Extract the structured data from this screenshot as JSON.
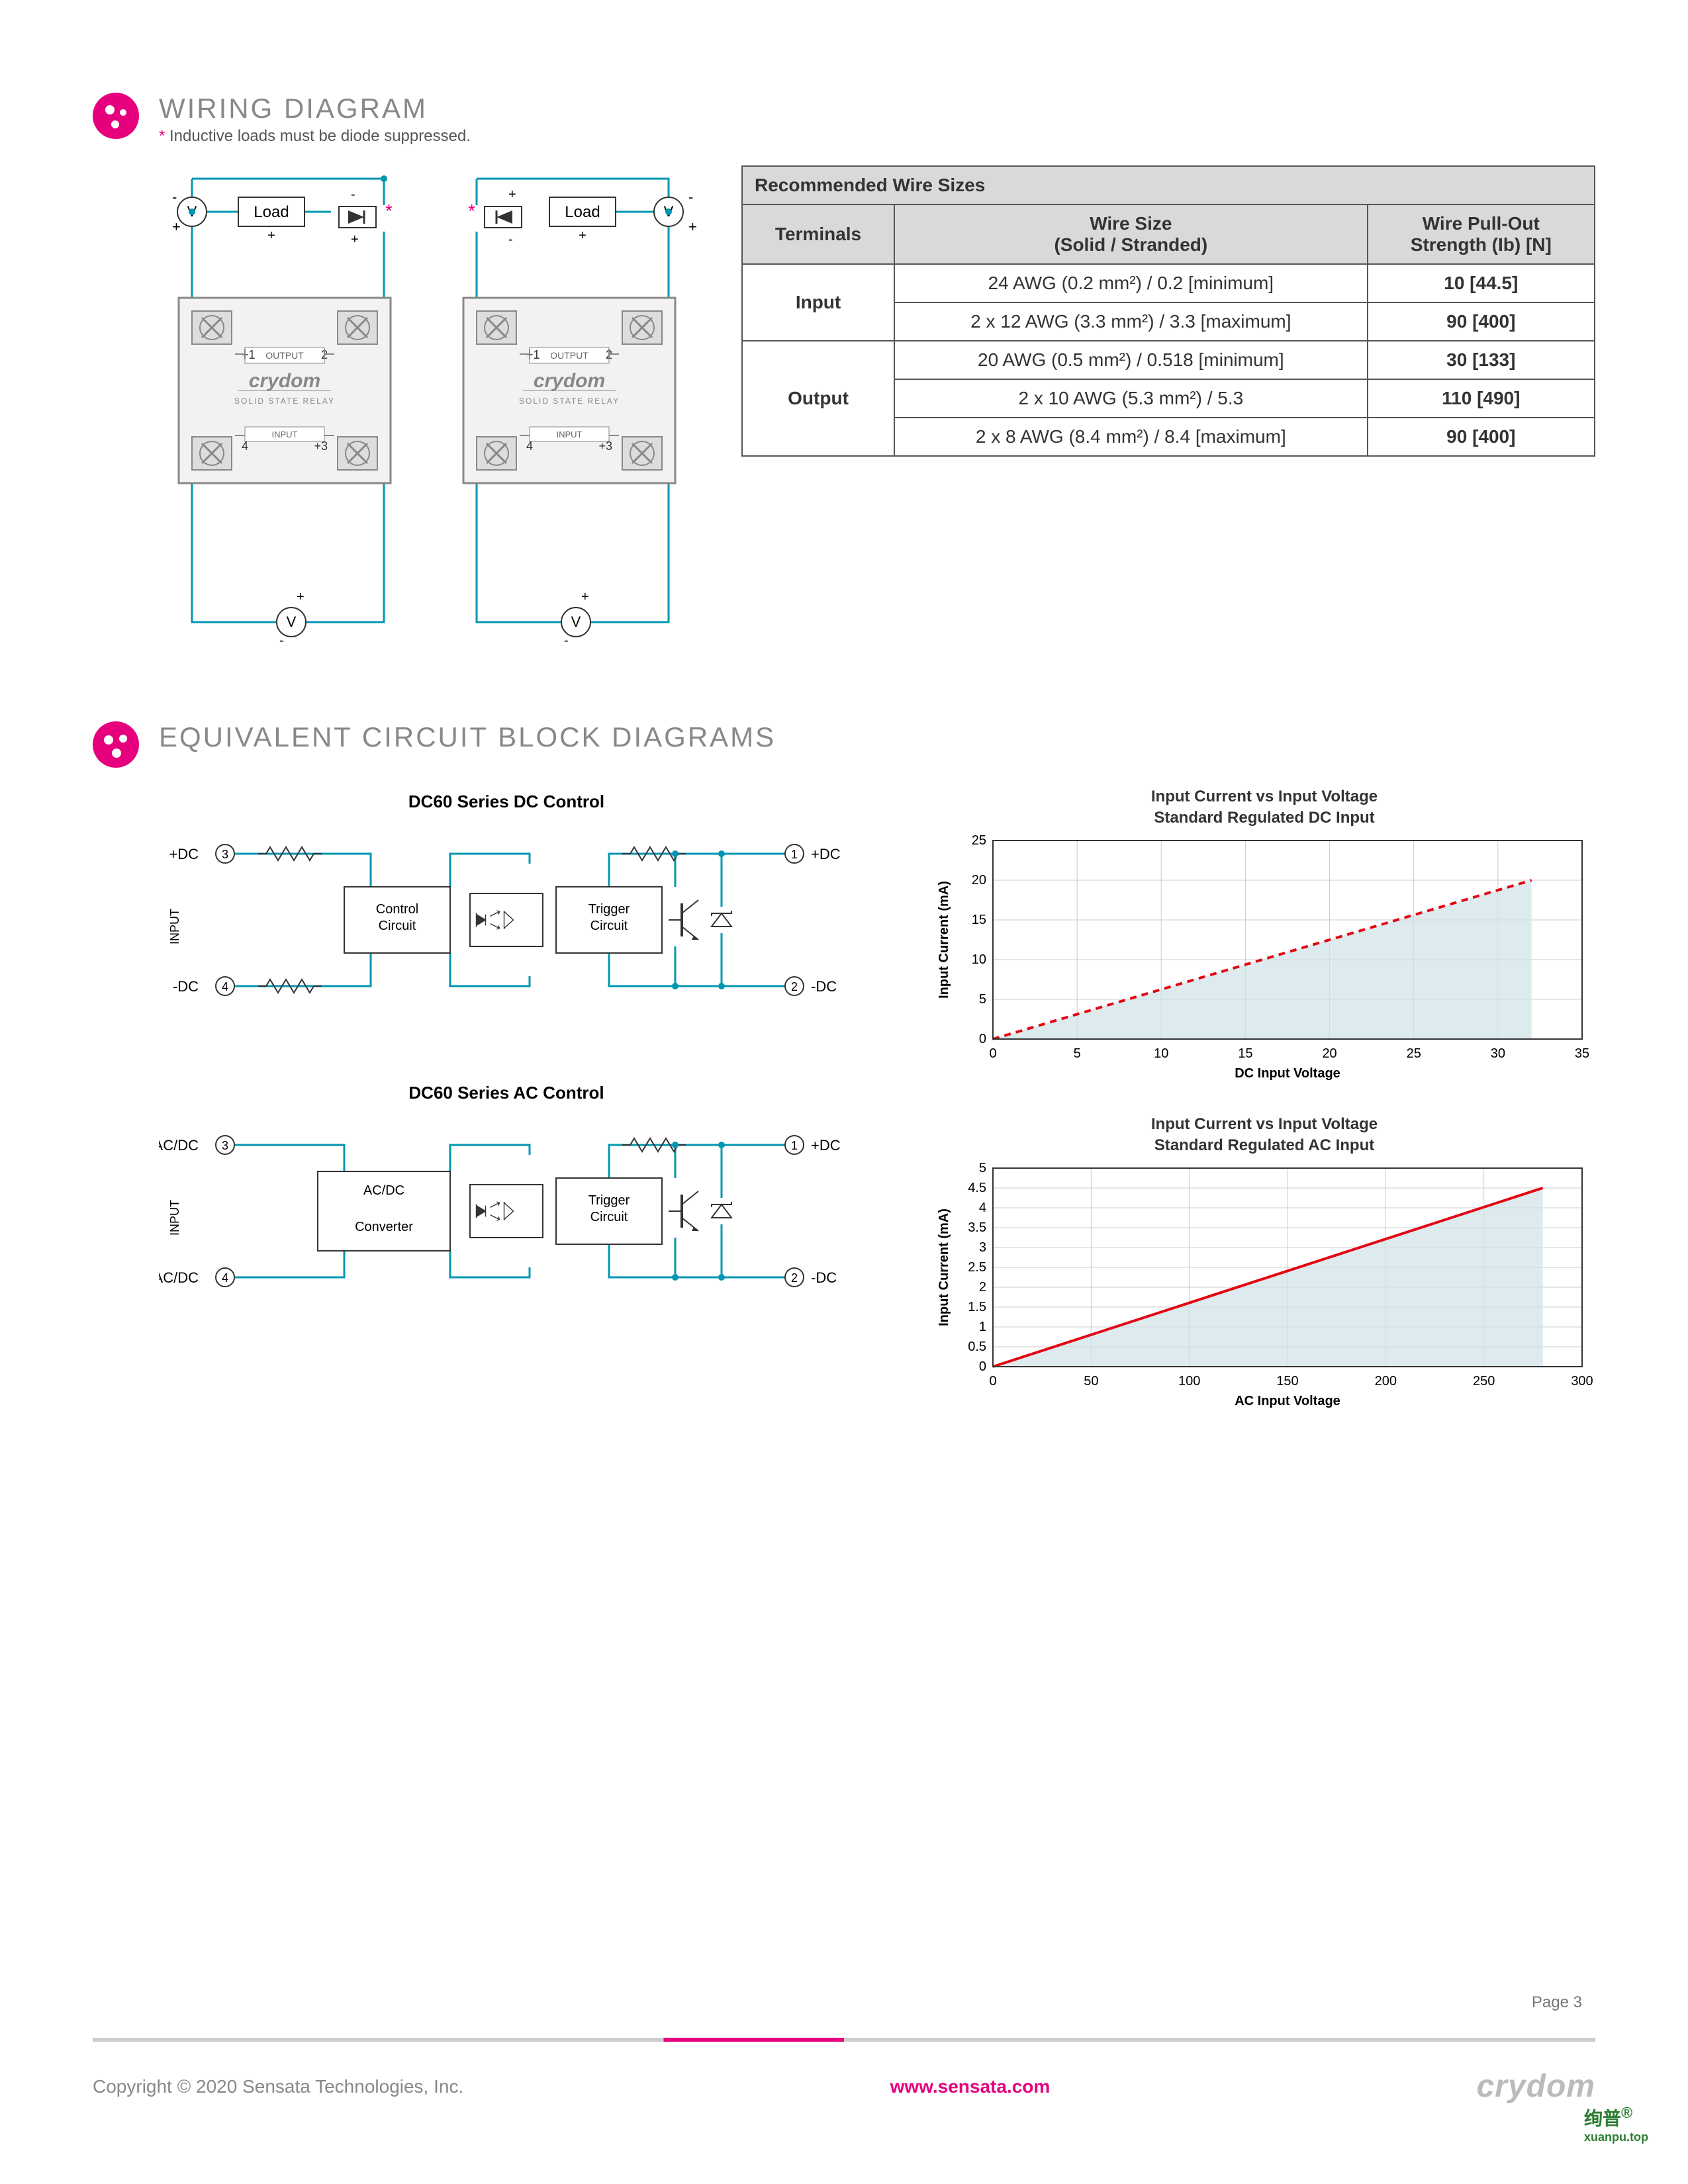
{
  "section1": {
    "title": "WIRING DIAGRAM",
    "note_ast": "*",
    "note": " Inductive loads must be diode suppressed."
  },
  "wiring": {
    "load_label": "Load",
    "v_label": "V",
    "relay_brand": "crydom",
    "relay_sub": "SOLID STATE RELAY",
    "output_label": "OUTPUT",
    "input_label": "INPUT",
    "pin1": "+1",
    "pin2": "2",
    "pin3": "+3",
    "pin4": "4",
    "plus": "+",
    "minus": "-",
    "asterisk": "*"
  },
  "table": {
    "title": "Recommended Wire Sizes",
    "col_term": "Terminals",
    "col_size": "Wire Size",
    "col_size2": "(Solid / Stranded)",
    "col_pull": "Wire Pull-Out",
    "col_pull2": "Strength (Ib) [N]",
    "r_input": "Input",
    "r_output": "Output",
    "rows": [
      {
        "size": "24 AWG (0.2 mm²) / 0.2 [minimum]",
        "str": "10 [44.5]"
      },
      {
        "size": "2 x 12 AWG (3.3 mm²) / 3.3 [maximum]",
        "str": "90 [400]"
      },
      {
        "size": "20 AWG (0.5 mm²) / 0.518 [minimum]",
        "str": "30 [133]"
      },
      {
        "size": "2 x 10 AWG (5.3 mm²) / 5.3",
        "str": "110 [490]"
      },
      {
        "size": "2 x 8  AWG (8.4 mm²) / 8.4 [maximum]",
        "str": "90 [400]"
      }
    ]
  },
  "section2": {
    "title": "EQUIVALENT CIRCUIT BLOCK DIAGRAMS"
  },
  "blocks": {
    "dc_title": "DC60 Series DC Control",
    "ac_title": "DC60 Series AC Control",
    "input_label": "INPUT",
    "ctrl": "Control\nCircuit",
    "conv": "AC/DC\n\nConverter",
    "trig": "Trigger\nCircuit",
    "p_dc_in_p": "+DC",
    "p_dc_in_n": "-DC",
    "p_dc_out_p": "+DC",
    "p_dc_out_n": "-DC",
    "p_ac_in": "AC/DC",
    "n3": "3",
    "n4": "4",
    "n1": "1",
    "n2": "2"
  },
  "chart1": {
    "title": "Input Current vs Input Voltage",
    "subtitle": "Standard Regulated DC Input",
    "xlabel": "DC Input Voltage",
    "ylabel": "Input Current (mA)",
    "xlim": [
      0,
      35
    ],
    "ylim": [
      0,
      25
    ],
    "xticks": [
      0,
      5,
      10,
      15,
      20,
      25,
      30,
      35
    ],
    "yticks": [
      0,
      5,
      10,
      15,
      20,
      25
    ],
    "line": [
      [
        0,
        0
      ],
      [
        32,
        20
      ]
    ],
    "line_color": "#e30613",
    "line_dash": true,
    "fill_color": "#cfe3e8",
    "fill_opacity": 0.7,
    "grid_color": "#ccc",
    "bg": "#ffffff",
    "label_fontsize": 20,
    "title_fontsize": 24
  },
  "chart2": {
    "title": "Input Current vs Input Voltage",
    "subtitle": "Standard Regulated AC Input",
    "xlabel": "AC Input Voltage",
    "ylabel": "Input Current (mA)",
    "xlim": [
      0,
      300
    ],
    "ylim": [
      0,
      5
    ],
    "xticks": [
      0,
      50,
      100,
      150,
      200,
      250,
      300
    ],
    "yticks": [
      0,
      0.5,
      1,
      1.5,
      2,
      2.5,
      3,
      3.5,
      4,
      4.5,
      5
    ],
    "line": [
      [
        0,
        0
      ],
      [
        280,
        4.5
      ]
    ],
    "line_color": "#e30613",
    "line_dash": false,
    "fill_color": "#cfe3e8",
    "fill_opacity": 0.7,
    "grid_color": "#ccc",
    "bg": "#ffffff",
    "label_fontsize": 20,
    "title_fontsize": 24
  },
  "footer": {
    "copyright": "Copyright © 2020 Sensata Technologies, Inc.",
    "url": "www.sensata.com",
    "brand": "crydom",
    "page": "Page 3"
  },
  "watermark": {
    "main": "绚普",
    "sub": "xuanpu.top",
    "reg": "®"
  },
  "colors": {
    "accent": "#e6007e",
    "wire": "#0097b2",
    "gray": "#888"
  }
}
